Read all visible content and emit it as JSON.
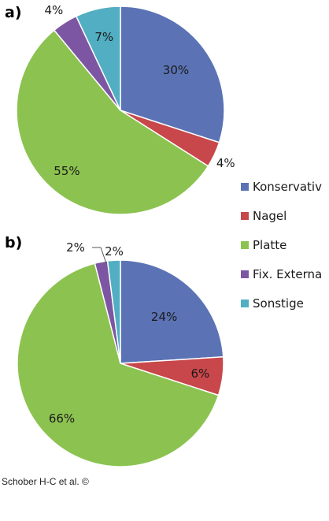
{
  "credit": "Schober H-C et al. ©",
  "chart_data": [
    {
      "type": "pie",
      "panel_label": "a)",
      "categories": [
        "Konservativ",
        "Nagel",
        "Platte",
        "Fix. Externa",
        "Sonstige"
      ],
      "values": [
        30,
        4,
        55,
        4,
        7
      ],
      "value_labels": [
        "30%",
        "4%",
        "55%",
        "4%",
        "7%"
      ]
    },
    {
      "type": "pie",
      "panel_label": "b)",
      "categories": [
        "Konservativ",
        "Nagel",
        "Platte",
        "Fix. Externa",
        "Sonstige"
      ],
      "values": [
        24,
        6,
        66,
        2,
        2
      ],
      "value_labels": [
        "24%",
        "6%",
        "66%",
        "2%",
        "2%"
      ]
    }
  ],
  "legend": {
    "position": "right",
    "items": [
      {
        "label": "Konservativ",
        "color": "#5b73b5"
      },
      {
        "label": "Nagel",
        "color": "#c8474a"
      },
      {
        "label": "Platte",
        "color": "#8cc350"
      },
      {
        "label": "Fix. Externa",
        "color": "#7d56a3"
      },
      {
        "label": "Sonstige",
        "color": "#52aec2"
      }
    ]
  }
}
